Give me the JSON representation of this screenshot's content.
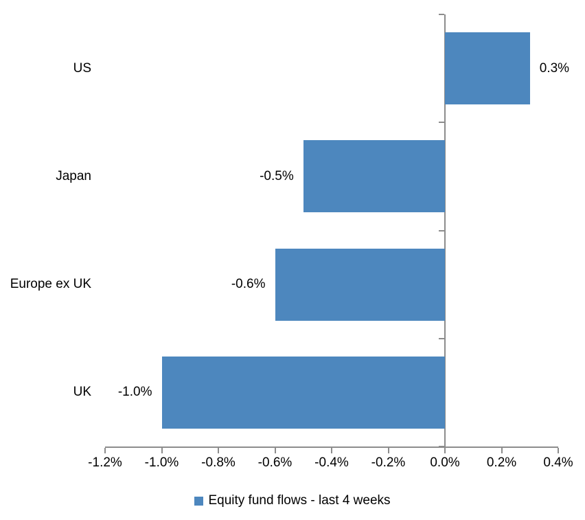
{
  "chart_data": {
    "type": "bar",
    "orientation": "horizontal",
    "title": "",
    "categories": [
      "US",
      "Japan",
      "Europe ex UK",
      "UK"
    ],
    "series": [
      {
        "name": "Equity fund flows - last 4 weeks",
        "values": [
          0.3,
          -0.5,
          -0.6,
          -1.0
        ],
        "data_labels": [
          "0.3%",
          "-0.5%",
          "-0.6%",
          "-1.0%"
        ],
        "color": "#4D87BE"
      }
    ],
    "xlabel": "",
    "ylabel": "",
    "xlim": [
      -1.2,
      0.4
    ],
    "x_tick_values": [
      -1.2,
      -1.0,
      -0.8,
      -0.6,
      -0.4,
      -0.2,
      0.0,
      0.2,
      0.4
    ],
    "x_tick_labels": [
      "-1.2%",
      "-1.0%",
      "-0.8%",
      "-0.6%",
      "-0.4%",
      "-0.2%",
      "0.0%",
      "0.2%",
      "0.4%"
    ],
    "grid": false,
    "legend_position": "bottom",
    "axis_color": "#8C8C8C",
    "text_color": "#000000",
    "background_color": "#FFFFFF"
  },
  "legend": {
    "items": [
      {
        "label": "Equity fund flows - last 4 weeks",
        "marker_color": "#4D87BE"
      }
    ]
  }
}
